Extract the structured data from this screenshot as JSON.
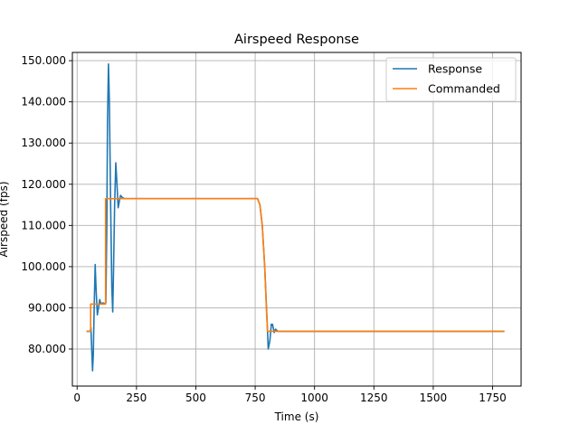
{
  "chart_data": {
    "type": "line",
    "title": "Airspeed Response",
    "xlabel": "Time (s)",
    "ylabel": "Airspeed (fps)",
    "xlim": [
      -20,
      1870
    ],
    "ylim": [
      71,
      152
    ],
    "grid": true,
    "legend_position": "top-right",
    "x_ticks": [
      0,
      250,
      500,
      750,
      1000,
      1250,
      1500,
      1750
    ],
    "x_tick_labels": [
      "0",
      "250",
      "500",
      "750",
      "1000",
      "1250",
      "1500",
      "1750"
    ],
    "y_ticks": [
      80,
      90,
      100,
      110,
      120,
      130,
      140,
      150
    ],
    "y_tick_labels": [
      "80.000",
      "90.000",
      "100.000",
      "110.000",
      "120.000",
      "130.000",
      "140.000",
      "150.000"
    ],
    "series": [
      {
        "name": "Response",
        "color": "#1f77b4",
        "points": [
          [
            40,
            84.3
          ],
          [
            55,
            84.3
          ],
          [
            58,
            85.2
          ],
          [
            61,
            80.5
          ],
          [
            65,
            74.7
          ],
          [
            68,
            78.5
          ],
          [
            72,
            90.0
          ],
          [
            76,
            100.5
          ],
          [
            80,
            94.5
          ],
          [
            85,
            88.3
          ],
          [
            90,
            90.0
          ],
          [
            95,
            92.0
          ],
          [
            100,
            91.0
          ],
          [
            110,
            91.2
          ],
          [
            115,
            91.0
          ],
          [
            121,
            91.2
          ],
          [
            125,
            110.0
          ],
          [
            128,
            135.0
          ],
          [
            132,
            149.2
          ],
          [
            136,
            140.0
          ],
          [
            141,
            115.0
          ],
          [
            146,
            95.0
          ],
          [
            150,
            89.0
          ],
          [
            153,
            98.0
          ],
          [
            158,
            115.0
          ],
          [
            163,
            125.2
          ],
          [
            168,
            120.0
          ],
          [
            173,
            114.3
          ],
          [
            178,
            116.0
          ],
          [
            183,
            117.3
          ],
          [
            190,
            116.8
          ],
          [
            200,
            116.5
          ],
          [
            760,
            116.5
          ],
          [
            770,
            115.0
          ],
          [
            780,
            110.0
          ],
          [
            790,
            100.0
          ],
          [
            800,
            87.0
          ],
          [
            805,
            80.0
          ],
          [
            812,
            82.0
          ],
          [
            818,
            86.0
          ],
          [
            823,
            86.0
          ],
          [
            830,
            84.0
          ],
          [
            836,
            84.8
          ],
          [
            845,
            84.3
          ],
          [
            1800,
            84.3
          ]
        ]
      },
      {
        "name": "Commanded",
        "color": "#ff7f0e",
        "points": [
          [
            40,
            84.3
          ],
          [
            57,
            84.3
          ],
          [
            57,
            90.9
          ],
          [
            120,
            90.9
          ],
          [
            120,
            116.5
          ],
          [
            760,
            116.5
          ],
          [
            770,
            115.0
          ],
          [
            780,
            110.0
          ],
          [
            790,
            100.0
          ],
          [
            797,
            90.0
          ],
          [
            802,
            84.3
          ],
          [
            1800,
            84.3
          ]
        ]
      }
    ]
  }
}
